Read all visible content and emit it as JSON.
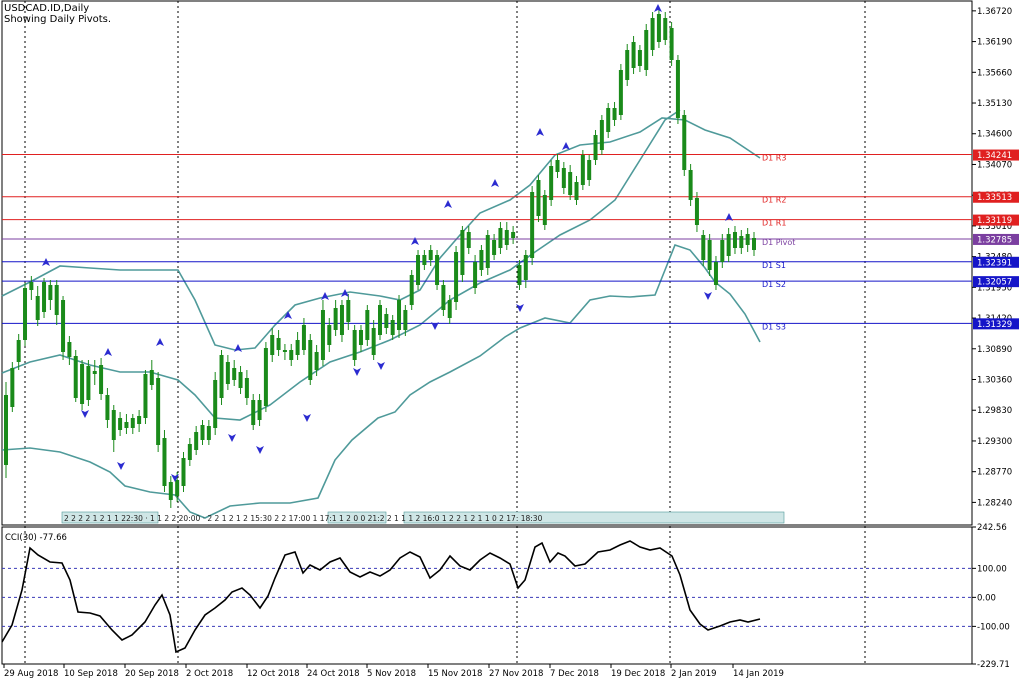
{
  "header": {
    "symbol_line": "USDCAD.ID,Daily",
    "pivot_line": "Showing Daily Pivots."
  },
  "colors": {
    "bull": "#1a8a1a",
    "bear": "#ee1111",
    "band": "#4f9a9a",
    "resistance": "#e02020",
    "support": "#1515c8",
    "pivot": "#7b3fa0",
    "cci": "#000000"
  },
  "chart_data": [
    {
      "type": "candlestick",
      "title": "USDCAD.ID,Daily",
      "y_ticks": [
        "1.36720",
        "1.36190",
        "1.35660",
        "1.35130",
        "1.34600",
        "1.34070",
        "1.33540",
        "1.33010",
        "1.32480",
        "1.31950",
        "1.31420",
        "1.30890",
        "1.30360",
        "1.29830",
        "1.29300",
        "1.28770",
        "1.28240"
      ],
      "ylim": [
        1.2785,
        1.3689
      ],
      "x_ticks": [
        "29 Aug 2018",
        "10 Sep 2018",
        "20 Sep 2018",
        "2 Oct 2018",
        "12 Oct 2018",
        "24 Oct 2018",
        "5 Nov 2018",
        "15 Nov 2018",
        "27 Nov 2018",
        "7 Dec 2018",
        "19 Dec 2018",
        "2 Jan 2019",
        "14 Jan 2019"
      ],
      "pivots": [
        {
          "label": "D1 R3",
          "value": "1.34241",
          "kind": "r"
        },
        {
          "label": "D1 R2",
          "value": "1.33513",
          "kind": "r"
        },
        {
          "label": "D1 R1",
          "value": "1.33119",
          "kind": "r"
        },
        {
          "label": "D1 Pivot",
          "value": "1.32785",
          "kind": "p"
        },
        {
          "label": "D1 S1",
          "value": "1.32391",
          "kind": "s"
        },
        {
          "label": "D1 S2",
          "value": "1.32057",
          "kind": "s"
        },
        {
          "label": "D1 S3",
          "value": "1.31329",
          "kind": "s"
        }
      ],
      "session_marks": "2 2 2 2 1 2 1 1 22:30 · 1 1 2 2 20:00 · 2 2 1 2 1 2 15:30 2 2 17:00 1 17:1 1 2 0 0 21:2 2 1 1 1 2 16:0 1 2 2 1 2 1 1 0 2 17: 18:30"
    },
    {
      "type": "line",
      "title": "CCI(30) -77.66",
      "y_ticks": [
        "242.56",
        "100.00",
        "0.00",
        "-100.00",
        "-229.71"
      ],
      "ylim": [
        -229.71,
        242.56
      ]
    }
  ]
}
